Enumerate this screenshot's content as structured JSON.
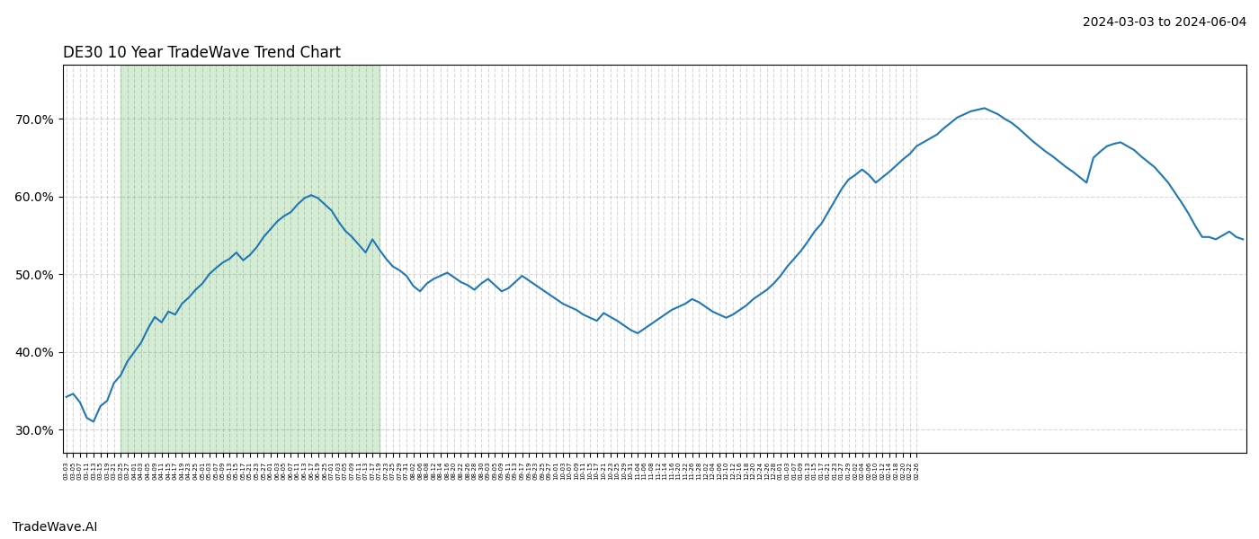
{
  "chart_data": {
    "type": "line",
    "title": "DE30 10 Year TradeWave Trend Chart",
    "subtitle": "2024-03-03 to 2024-06-04",
    "annotations": [
      "TradeWave.AI"
    ],
    "categories": [
      "03-03",
      "03-05",
      "03-07",
      "03-11",
      "03-13",
      "03-15",
      "03-19",
      "03-21",
      "03-25",
      "03-27",
      "04-01",
      "04-03",
      "04-05",
      "04-09",
      "04-11",
      "04-15",
      "04-17",
      "04-19",
      "04-23",
      "04-25",
      "05-01",
      "05-03",
      "05-07",
      "05-09",
      "05-13",
      "05-15",
      "05-17",
      "05-21",
      "05-23",
      "05-27",
      "06-01",
      "06-03",
      "06-05",
      "06-07",
      "06-11",
      "06-13",
      "06-17",
      "06-19",
      "06-25",
      "07-01",
      "07-03",
      "07-05",
      "07-09",
      "07-11",
      "07-13",
      "07-17",
      "07-19",
      "07-23",
      "07-25",
      "07-29",
      "07-31",
      "08-02",
      "08-06",
      "08-08",
      "08-12",
      "08-14",
      "08-16",
      "08-20",
      "08-22",
      "08-26",
      "08-28",
      "08-30",
      "09-03",
      "09-05",
      "09-09",
      "09-11",
      "09-13",
      "09-17",
      "09-19",
      "09-23",
      "09-25",
      "09-27",
      "10-01",
      "10-03",
      "10-07",
      "10-09",
      "10-11",
      "10-15",
      "10-17",
      "10-21",
      "10-23",
      "10-25",
      "10-29",
      "10-31",
      "11-04",
      "11-06",
      "11-08",
      "11-12",
      "11-14",
      "11-16",
      "11-20",
      "11-22",
      "11-26",
      "11-28",
      "12-02",
      "12-04",
      "12-06",
      "12-10",
      "12-12",
      "12-16",
      "12-18",
      "12-20",
      "12-24",
      "12-26",
      "12-28",
      "01-01",
      "01-03",
      "01-07",
      "01-09",
      "01-13",
      "01-15",
      "01-17",
      "01-21",
      "01-23",
      "01-27",
      "01-29",
      "02-02",
      "02-04",
      "02-06",
      "02-10",
      "02-12",
      "02-14",
      "02-18",
      "02-20",
      "02-22",
      "02-26",
      null,
      null,
      null,
      null,
      null,
      null,
      null,
      null,
      null,
      null,
      null,
      null,
      null,
      null,
      null,
      null,
      null,
      null,
      null,
      null,
      null,
      null,
      null,
      null,
      null,
      null,
      null,
      null,
      null,
      null,
      null,
      null,
      null,
      null,
      null,
      null,
      null,
      null,
      null,
      null,
      null,
      null,
      null,
      null,
      null,
      null,
      null,
      null
    ],
    "values": [
      0.342,
      0.346,
      0.335,
      0.315,
      0.31,
      0.33,
      0.337,
      0.36,
      0.37,
      0.388,
      0.4,
      0.412,
      0.43,
      0.445,
      0.438,
      0.452,
      0.448,
      0.462,
      0.47,
      0.48,
      0.488,
      0.5,
      0.508,
      0.515,
      0.52,
      0.528,
      0.518,
      0.525,
      0.535,
      0.548,
      0.558,
      0.568,
      0.575,
      0.58,
      0.59,
      0.598,
      0.602,
      0.598,
      0.59,
      0.582,
      0.568,
      0.556,
      0.548,
      0.538,
      0.528,
      0.545,
      0.532,
      0.52,
      0.51,
      0.505,
      0.498,
      0.485,
      0.478,
      0.488,
      0.494,
      0.498,
      0.502,
      0.496,
      0.49,
      0.486,
      0.48,
      0.488,
      0.494,
      0.486,
      0.478,
      0.482,
      0.49,
      0.498,
      0.492,
      0.486,
      0.48,
      0.474,
      0.468,
      0.462,
      0.458,
      0.454,
      0.448,
      0.444,
      0.44,
      0.45,
      0.445,
      0.44,
      0.434,
      0.428,
      0.424,
      0.43,
      0.436,
      0.442,
      0.448,
      0.454,
      0.458,
      0.462,
      0.468,
      0.464,
      0.458,
      0.452,
      0.448,
      0.444,
      0.448,
      0.454,
      0.46,
      0.468,
      0.474,
      0.48,
      0.488,
      0.498,
      0.51,
      0.52,
      0.53,
      0.542,
      0.555,
      0.565,
      0.58,
      0.595,
      0.61,
      0.622,
      0.628,
      0.635,
      0.628,
      0.618,
      0.625,
      0.632,
      0.64,
      0.648,
      0.655,
      0.665,
      0.67,
      0.675,
      0.68,
      0.688,
      0.695,
      0.702,
      0.706,
      0.71,
      0.712,
      0.714,
      0.71,
      0.706,
      0.7,
      0.695,
      0.688,
      0.68,
      0.672,
      0.665,
      0.658,
      0.652,
      0.645,
      0.638,
      0.632,
      0.625,
      0.618,
      0.65,
      0.658,
      0.665,
      0.668,
      0.67,
      0.665,
      0.66,
      0.652,
      0.645,
      0.638,
      0.628,
      0.618,
      0.605,
      0.592,
      0.578,
      0.562,
      0.548,
      0.548,
      0.545,
      0.55,
      0.555,
      0.548,
      0.545
    ],
    "shaded_range": {
      "start": "03-25",
      "end": "07-19"
    },
    "ylim": [
      0.27,
      0.77
    ],
    "yticks": [
      {
        "value": 0.3,
        "label": "30.0%"
      },
      {
        "value": 0.4,
        "label": "40.0%"
      },
      {
        "value": 0.5,
        "label": "50.0%"
      },
      {
        "value": 0.6,
        "label": "60.0%"
      },
      {
        "value": 0.7,
        "label": "70.0%"
      }
    ],
    "grid": true
  }
}
